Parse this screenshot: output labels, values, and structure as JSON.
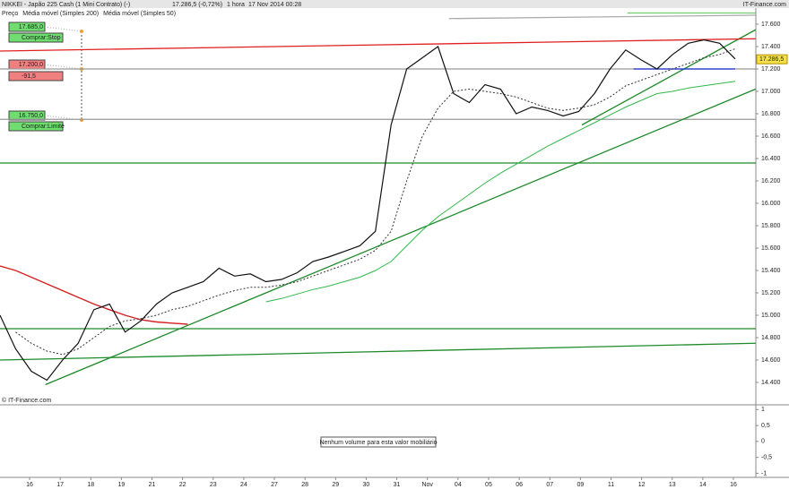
{
  "header": {
    "instrument": "NIKKEI - Japão 225 Cash (1 Mini Contrato) (-)",
    "quote": "17.286,5 (-0,72%)",
    "period": "1 hora",
    "timestamp": "17 Nov 2014 00:28",
    "brand": "IT-Finance.com"
  },
  "chart_data": {
    "type": "line",
    "x_tick_labels": [
      "16",
      "17",
      "18",
      "19",
      "21",
      "22",
      "23",
      "24",
      "27",
      "28",
      "29",
      "30",
      "31",
      "Nov",
      "04",
      "05",
      "06",
      "07",
      "09",
      "11",
      "12",
      "13",
      "14",
      "16"
    ],
    "series": [
      {
        "name": "Preço",
        "color": "#111111",
        "values": [
          15000,
          14700,
          14500,
          14420,
          14600,
          14750,
          15050,
          15100,
          14850,
          14950,
          15100,
          15200,
          15250,
          15300,
          15420,
          15350,
          15370,
          15300,
          15320,
          15380,
          15480,
          15520,
          15570,
          15620,
          15750,
          16700,
          17200,
          17300,
          17400,
          16980,
          16900,
          17060,
          17020,
          16800,
          16860,
          16830,
          16780,
          16820,
          16980,
          17200,
          17370,
          17280,
          17200,
          17330,
          17430,
          17460,
          17430,
          17290
        ]
      },
      {
        "name": "Média móvel (Simples 200)",
        "color": "#2fb84a",
        "values": [
          null,
          null,
          null,
          null,
          null,
          null,
          null,
          null,
          null,
          null,
          null,
          null,
          null,
          null,
          null,
          null,
          null,
          15120,
          15150,
          15190,
          15230,
          15260,
          15300,
          15340,
          15400,
          15480,
          15620,
          15760,
          15880,
          15980,
          16080,
          16180,
          16270,
          16350,
          16430,
          16510,
          16580,
          16650,
          16720,
          16790,
          16860,
          16920,
          16980,
          17000,
          17030,
          17050,
          17070,
          17090
        ]
      },
      {
        "name": "Média móvel (Simples 50)",
        "color": "#333333",
        "dashed": true,
        "values": [
          null,
          14850,
          14750,
          14680,
          14650,
          14700,
          14800,
          14900,
          14950,
          14970,
          15000,
          15050,
          15080,
          15130,
          15180,
          15220,
          15250,
          15250,
          15270,
          15300,
          15350,
          15400,
          15450,
          15500,
          15580,
          15750,
          16200,
          16600,
          16850,
          17000,
          17020,
          17000,
          16980,
          16950,
          16900,
          16850,
          16830,
          16850,
          16880,
          16950,
          17050,
          17100,
          17150,
          17200,
          17250,
          17300,
          17330,
          17380
        ]
      }
    ],
    "overlays": [
      {
        "color": "#d42020",
        "values": [
          15440,
          15400,
          15340,
          15280,
          15220,
          15160,
          15100,
          15050,
          15000,
          14960,
          14940,
          14930,
          14920
        ]
      }
    ],
    "trend_lines": [
      {
        "color": "#1e8a2a",
        "from": [
          2.9,
          14380
        ],
        "to": [
          48.3,
          17020
        ]
      },
      {
        "color": "#1e8a2a",
        "from": [
          0,
          14600
        ],
        "to": [
          48.3,
          14750
        ]
      },
      {
        "color": "#1e8a2a",
        "from": [
          37.2,
          16700
        ],
        "to": [
          48.3,
          17550
        ]
      },
      {
        "color": "#e02020",
        "from": [
          0,
          17360
        ],
        "to": [
          48.3,
          17470
        ]
      },
      {
        "color": "#aaaaaa",
        "from": [
          28.7,
          17650
        ],
        "to": [
          48.3,
          17680
        ]
      },
      {
        "color": "#6fcf6f",
        "from": [
          40.1,
          17700
        ],
        "to": [
          48.3,
          17700
        ]
      },
      {
        "color": "#1a2fd0",
        "from": [
          40.5,
          17200
        ],
        "to": [
          47,
          17200
        ]
      }
    ],
    "levels": [
      {
        "value": 16360,
        "color": "#1e8a2a"
      },
      {
        "value": 14880,
        "color": "#1e8a2a"
      },
      {
        "value": 17200,
        "color": "#999999"
      },
      {
        "value": 16750,
        "color": "#999999"
      }
    ],
    "ylim": [
      14200,
      17720
    ],
    "yticks": [
      {
        "value": 14400,
        "label": "14.400"
      },
      {
        "value": 14600,
        "label": "14.600"
      },
      {
        "value": 14800,
        "label": "14.800"
      },
      {
        "value": 15000,
        "label": "15.000"
      },
      {
        "value": 15200,
        "label": "15.200"
      },
      {
        "value": 15400,
        "label": "15.400"
      },
      {
        "value": 15600,
        "label": "15.600"
      },
      {
        "value": 15800,
        "label": "15.800"
      },
      {
        "value": 16000,
        "label": "16.000"
      },
      {
        "value": 16200,
        "label": "16.200"
      },
      {
        "value": 16400,
        "label": "16.400"
      },
      {
        "value": 16600,
        "label": "16.600"
      },
      {
        "value": 16800,
        "label": "16.800"
      },
      {
        "value": 17000,
        "label": "17.000"
      },
      {
        "value": 17200,
        "label": "17.200"
      },
      {
        "value": 17400,
        "label": "17.400"
      },
      {
        "value": 17600,
        "label": "17.600"
      }
    ],
    "last_price": {
      "value": 17286.5,
      "label": "17.286,5"
    },
    "orders": [
      {
        "price": "17.685,0",
        "action": "Comprar:Stop"
      },
      {
        "price": "17.200,0",
        "action": "-91,5"
      },
      {
        "price": "16.750,0",
        "action": "Comprar:Limite"
      }
    ],
    "copyright": "© IT-Finance.com",
    "volume": {
      "message": "Nenhum volume para esta valor mobiliário",
      "ylim": [
        -1.1,
        1.15
      ],
      "yticks": [
        1,
        {
          "value": 0.5,
          "label": "0,5"
        },
        0,
        {
          "value": -0.5,
          "label": "-0,5"
        },
        -1
      ]
    }
  }
}
